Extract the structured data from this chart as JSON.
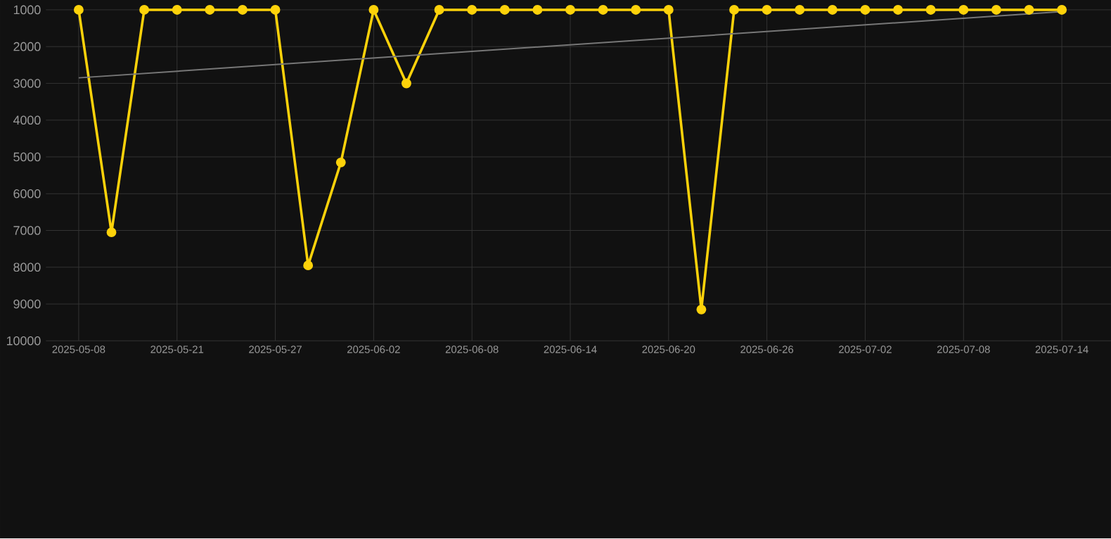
{
  "chart_data": {
    "type": "line",
    "x": [
      "2025-05-15",
      "2025-05-17",
      "2025-05-19",
      "2025-05-21",
      "2025-05-23",
      "2025-05-25",
      "2025-05-27",
      "2025-05-29",
      "2025-05-31",
      "2025-06-02",
      "2025-06-04",
      "2025-06-06",
      "2025-06-08",
      "2025-06-10",
      "2025-06-12",
      "2025-06-14",
      "2025-06-16",
      "2025-06-18",
      "2025-06-20",
      "2025-06-22",
      "2025-06-24",
      "2025-06-26",
      "2025-06-28",
      "2025-06-30",
      "2025-07-02",
      "2025-07-04",
      "2025-07-06",
      "2025-07-08",
      "2025-07-10",
      "2025-07-12",
      "2025-07-14"
    ],
    "series": [
      {
        "color": "#fdd20a",
        "marker": "circle",
        "values": [
          1000,
          7050,
          1000,
          1000,
          1000,
          1000,
          1000,
          7950,
          5150,
          1000,
          3000,
          1000,
          1000,
          1000,
          1000,
          1000,
          1000,
          1000,
          1000,
          9150,
          1000,
          1000,
          1000,
          1000,
          1000,
          1000,
          1000,
          1000,
          1000,
          1000,
          1000
        ]
      },
      {
        "type": "line",
        "color": "#777777",
        "marker": "none",
        "x": [
          "2025-05-15",
          "2025-07-14"
        ],
        "values": [
          2850,
          1050
        ]
      }
    ],
    "xlim": [
      "2025-05-13",
      "2025-07-17"
    ],
    "xticks": [
      {
        "value": "2025-05-15",
        "label": "2025-05-08"
      },
      "2025-05-21",
      "2025-05-27",
      "2025-06-02",
      "2025-06-08",
      "2025-06-14",
      "2025-06-20",
      "2025-06-26",
      "2025-07-02",
      "2025-07-08",
      "2025-07-14"
    ],
    "ylim": [
      10000,
      1000
    ],
    "yticks": [
      1000,
      2000,
      3000,
      4000,
      5000,
      6000,
      7000,
      8000,
      9000,
      10000
    ],
    "grid": true
  }
}
